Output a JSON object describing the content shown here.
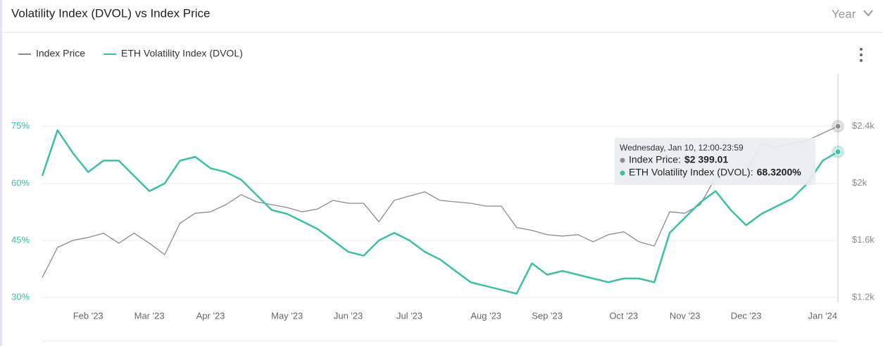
{
  "range_selector": "Year",
  "chart_data": {
    "type": "line",
    "title": "Volatility Index (DVOL) vs Index Price",
    "categories": [
      null,
      null,
      null,
      "Feb '23",
      null,
      null,
      null,
      "Mar '23",
      null,
      null,
      null,
      "Apr '23",
      null,
      null,
      null,
      null,
      "May '23",
      null,
      null,
      null,
      "Jun '23",
      null,
      null,
      null,
      "Jul '23",
      null,
      null,
      null,
      null,
      "Aug '23",
      null,
      null,
      null,
      "Sep '23",
      null,
      null,
      null,
      null,
      "Oct '23",
      null,
      null,
      null,
      "Nov '23",
      null,
      null,
      null,
      "Dec '23",
      null,
      null,
      null,
      null,
      "Jan '24",
      null
    ],
    "series": [
      {
        "name": "Index Price",
        "color": "#8c8c8c",
        "axis": "y2",
        "values": [
          1340,
          1550,
          1600,
          1620,
          1650,
          1580,
          1650,
          1580,
          1500,
          1720,
          1790,
          1800,
          1850,
          1920,
          1870,
          1850,
          1830,
          1800,
          1820,
          1880,
          1860,
          1860,
          1730,
          1880,
          1910,
          1940,
          1880,
          1870,
          1860,
          1840,
          1840,
          1690,
          1670,
          1640,
          1630,
          1640,
          1590,
          1640,
          1660,
          1590,
          1560,
          1800,
          1790,
          1850,
          2040,
          2060,
          2080,
          2280,
          2250,
          2280,
          2300,
          2350,
          2399.01
        ]
      },
      {
        "name": "ETH Volatility Index (DVOL)",
        "color": "#3dbfa5",
        "values": [
          62,
          74,
          68,
          63,
          66,
          66,
          62,
          58,
          60,
          66,
          67,
          64,
          63,
          61,
          57,
          53,
          52,
          50,
          48,
          45,
          42,
          41,
          45,
          47,
          45,
          42,
          40,
          37,
          34,
          33,
          32,
          31,
          39,
          36,
          37,
          36,
          35,
          34,
          35,
          35,
          34,
          47,
          51,
          55,
          58,
          53,
          49,
          52,
          54,
          56,
          60,
          66,
          68.32
        ]
      }
    ],
    "ylim": [
      30,
      77
    ],
    "yticks": [
      {
        "value": 30,
        "label": "30%"
      },
      {
        "value": 45,
        "label": "45%"
      },
      {
        "value": 60,
        "label": "60%"
      },
      {
        "value": 75,
        "label": "75%"
      }
    ],
    "y2lim": [
      1200,
      2451
    ],
    "y2ticks": [
      {
        "value": 1200,
        "label": "$1.2k"
      },
      {
        "value": 1600,
        "label": "$1.6k"
      },
      {
        "value": 2000,
        "label": "$2k"
      },
      {
        "value": 2400,
        "label": "$2.4k"
      }
    ],
    "grid": true,
    "tooltip": {
      "date": "Wednesday, Jan 10, 12:00-23:59",
      "lines": [
        {
          "label": "Index Price:",
          "value": "$2 399.01"
        },
        {
          "label": "ETH Volatility Index (DVOL):",
          "value": "68.3200%"
        }
      ]
    }
  }
}
